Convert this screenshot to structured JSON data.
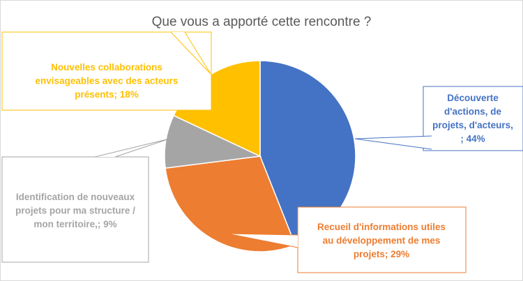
{
  "chart_data": {
    "type": "pie",
    "title": "Que vous a apporté cette rencontre ?",
    "slices": [
      {
        "label_lines": [
          "Découverte",
          "d'actions, de",
          "projets, d'acteurs,",
          "; 44%"
        ],
        "value": 44,
        "color": "#4472C4"
      },
      {
        "label_lines": [
          "Recueil d'informations utiles",
          "au développement de mes",
          "projets; 29%"
        ],
        "value": 29,
        "color": "#ED7D31"
      },
      {
        "label_lines": [
          "Identification de nouveaux",
          "projets pour ma structure /",
          "mon territoire,; 9%"
        ],
        "value": 9,
        "color": "#A5A5A5"
      },
      {
        "label_lines": [
          "Nouvelles collaborations",
          "envisageables avec des acteurs",
          "présents; 18%"
        ],
        "value": 18,
        "color": "#FFC000"
      }
    ]
  }
}
